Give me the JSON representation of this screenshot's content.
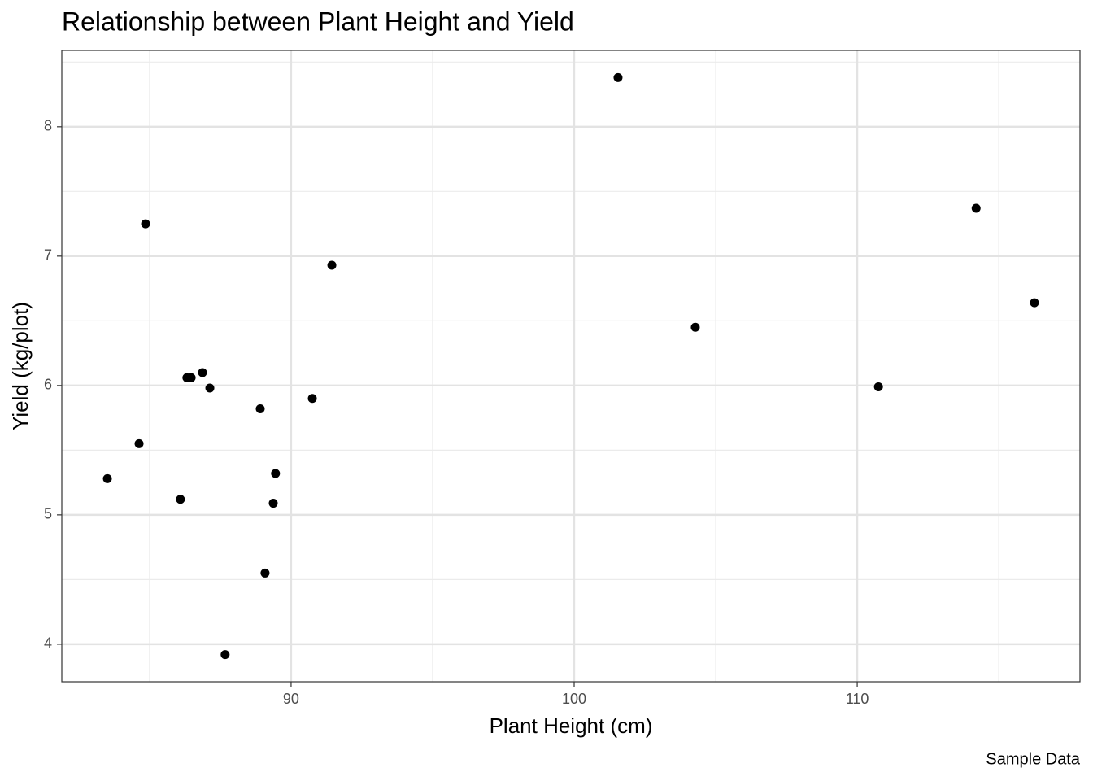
{
  "chart_data": {
    "type": "scatter",
    "title": "Relationship between Plant Height and Yield",
    "x_label": "Plant Height (cm)",
    "y_label": "Yield (kg/plot)",
    "caption": "Sample Data",
    "color": "#000000",
    "x": [
      83.51,
      84.63,
      84.86,
      86.09,
      86.32,
      86.47,
      86.87,
      87.13,
      87.67,
      88.91,
      89.08,
      89.37,
      89.45,
      90.75,
      91.44,
      101.55,
      104.28,
      110.75,
      114.2,
      116.26
    ],
    "values": [
      5.28,
      5.55,
      7.25,
      5.12,
      6.06,
      6.06,
      6.1,
      5.98,
      3.92,
      5.82,
      4.55,
      5.09,
      5.32,
      5.9,
      6.93,
      8.38,
      6.45,
      5.99,
      7.37,
      6.64
    ],
    "xlim": [
      81.9,
      117.87
    ],
    "ylim": [
      3.71,
      8.59
    ],
    "xticks": [
      90,
      100,
      110
    ],
    "yticks": [
      4,
      5,
      6,
      7,
      8
    ],
    "xminor": [
      85,
      95,
      105,
      115
    ],
    "yminor": [
      4.5,
      5.5,
      6.5,
      7.5,
      8.5
    ],
    "grid": true
  }
}
